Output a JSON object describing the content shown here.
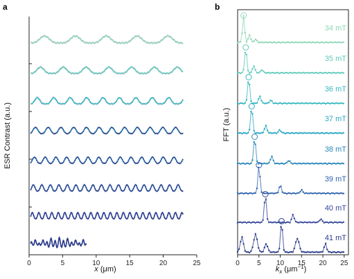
{
  "chart_data": [
    {
      "panel": "a",
      "type": "line",
      "xlabel_italic": "x",
      "xlabel_unit": " (μm)",
      "ylabel": "ESR Contrast (a.u.)",
      "xlim": [
        0,
        25
      ],
      "xticks": [
        0,
        5,
        10,
        15,
        20,
        25
      ],
      "series": [
        {
          "field": "34 mT",
          "color": "#8fd7b7",
          "x_end": 23.0,
          "period": 4.6
        },
        {
          "field": "35 mT",
          "color": "#5fcaba",
          "x_end": 23.0,
          "period": 3.4
        },
        {
          "field": "36 mT",
          "color": "#38b8bf",
          "x_end": 23.0,
          "period": 2.45
        },
        {
          "field": "37 mT",
          "color": "#2ba6c4",
          "x_end": 23.0,
          "period": 1.9
        },
        {
          "field": "38 mT",
          "color": "#2a86ba",
          "x_end": 23.0,
          "period": 1.6
        },
        {
          "field": "39 mT",
          "color": "#2f63ae",
          "x_end": 23.0,
          "period": 1.27
        },
        {
          "field": "40 mT",
          "color": "#33469b",
          "x_end": 23.0,
          "period": 0.97
        },
        {
          "field": "41 mT",
          "color": "#2a3a8a",
          "x_end": 8.5,
          "period": 0.6
        }
      ]
    },
    {
      "panel": "b",
      "type": "line",
      "xlabel_italic": "k",
      "xlabel_sub": "x",
      "xlabel_unit": " (μm",
      "xlabel_sup": "−1",
      "xlabel_close": ")",
      "ylabel": "FFT (a.u.)",
      "xlim": [
        0,
        26
      ],
      "xticks": [
        0,
        5,
        10,
        15,
        20,
        25
      ],
      "series": [
        {
          "name": "34 mT",
          "color": "#8fd7b7",
          "peak_k": 1.4
        },
        {
          "name": "35 mT",
          "color": "#5fcaba",
          "peak_k": 1.9
        },
        {
          "name": "36 mT",
          "color": "#38b8bf",
          "peak_k": 2.6
        },
        {
          "name": "37 mT",
          "color": "#2ba6c4",
          "peak_k": 3.3
        },
        {
          "name": "38 mT",
          "color": "#2a86ba",
          "peak_k": 4.0
        },
        {
          "name": "39 mT",
          "color": "#2f63ae",
          "peak_k": 5.0
        },
        {
          "name": "40 mT",
          "color": "#33469b",
          "peak_k": 6.5
        },
        {
          "name": "41 mT",
          "color": "#2a3a8a",
          "peak_k": 10.3
        }
      ]
    }
  ]
}
